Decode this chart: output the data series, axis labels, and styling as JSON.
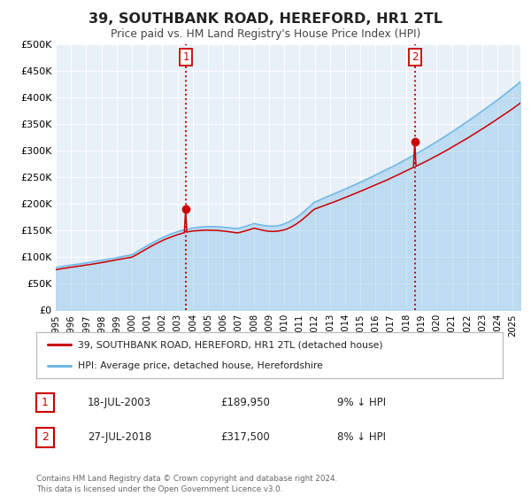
{
  "title": "39, SOUTHBANK ROAD, HEREFORD, HR1 2TL",
  "subtitle": "Price paid vs. HM Land Registry's House Price Index (HPI)",
  "hpi_color": "#6eb6e6",
  "price_color": "#cc0000",
  "plot_bg": "#e8f0f8",
  "ylim": [
    0,
    500000
  ],
  "yticks": [
    0,
    50000,
    100000,
    150000,
    200000,
    250000,
    300000,
    350000,
    400000,
    450000,
    500000
  ],
  "ytick_labels": [
    "£0",
    "£50K",
    "£100K",
    "£150K",
    "£200K",
    "£250K",
    "£300K",
    "£350K",
    "£400K",
    "£450K",
    "£500K"
  ],
  "xlim_start": 1995.0,
  "xlim_end": 2025.5,
  "xtick_years": [
    1995,
    1996,
    1997,
    1998,
    1999,
    2000,
    2001,
    2002,
    2003,
    2004,
    2005,
    2006,
    2007,
    2008,
    2009,
    2010,
    2011,
    2012,
    2013,
    2014,
    2015,
    2016,
    2017,
    2018,
    2019,
    2020,
    2021,
    2022,
    2023,
    2024,
    2025
  ],
  "marker1_x": 2003.54,
  "marker1_y": 189950,
  "marker2_x": 2018.57,
  "marker2_y": 317500,
  "marker1_label": "18-JUL-2003",
  "marker1_price": "£189,950",
  "marker1_hpi": "9% ↓ HPI",
  "marker2_label": "27-JUL-2018",
  "marker2_price": "£317,500",
  "marker2_hpi": "8% ↓ HPI",
  "legend_line1": "39, SOUTHBANK ROAD, HEREFORD, HR1 2TL (detached house)",
  "legend_line2": "HPI: Average price, detached house, Herefordshire",
  "footer": "Contains HM Land Registry data © Crown copyright and database right 2024.\nThis data is licensed under the Open Government Licence v3.0."
}
